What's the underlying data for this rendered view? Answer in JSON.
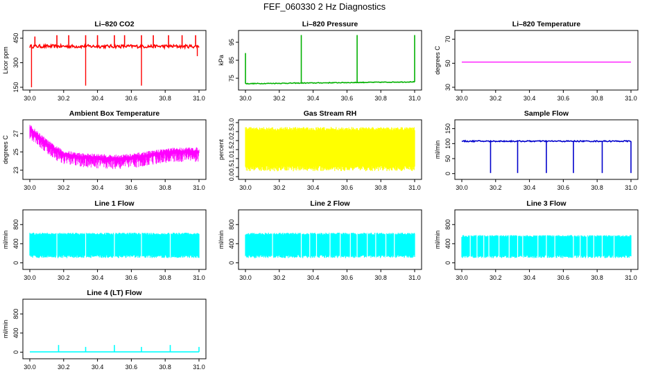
{
  "page": {
    "title": "FEF_060330  2 Hz Diagnostics"
  },
  "chart_data": [
    {
      "id": "co2",
      "type": "line",
      "title": "Li–820 CO2",
      "ylabel": "Licor ppm",
      "xlim": [
        30.0,
        31.0
      ],
      "xticks": [
        "30.0",
        "30.2",
        "30.4",
        "30.6",
        "30.8",
        "31.0"
      ],
      "ylim": [
        150,
        480
      ],
      "yticks": [
        150,
        300,
        450
      ],
      "ytick_labels": [
        "150",
        "300",
        "450"
      ],
      "color": "#ff0000",
      "base": 400,
      "noise": 10,
      "spikes_up": [
        [
          30.03,
          460
        ],
        [
          30.16,
          468
        ],
        [
          30.23,
          468
        ],
        [
          30.33,
          468
        ],
        [
          30.4,
          468
        ],
        [
          30.5,
          468
        ],
        [
          30.56,
          468
        ],
        [
          30.66,
          468
        ],
        [
          30.73,
          468
        ],
        [
          30.82,
          468
        ],
        [
          30.9,
          468
        ],
        [
          30.98,
          468
        ]
      ],
      "spikes_down": [
        [
          30.01,
          150
        ],
        [
          30.33,
          160
        ],
        [
          30.66,
          160
        ],
        [
          30.99,
          340
        ]
      ]
    },
    {
      "id": "pressure",
      "type": "line",
      "title": "Li–820 Pressure",
      "ylabel": "kPa",
      "xlim": [
        30.0,
        31.0
      ],
      "xticks": [
        "30.0",
        "30.2",
        "30.4",
        "30.6",
        "30.8",
        "31.0"
      ],
      "ylim": [
        70,
        100
      ],
      "yticks": [
        75,
        85,
        95
      ],
      "ytick_labels": [
        "75",
        "85",
        "95"
      ],
      "color": "#00b000",
      "base_start": 72.0,
      "base_end": 73.0,
      "noise": 0.2,
      "spikes_up": [
        [
          30.0,
          89
        ],
        [
          30.33,
          99
        ],
        [
          30.66,
          99
        ],
        [
          31.0,
          99
        ]
      ],
      "spikes_down": []
    },
    {
      "id": "temperature",
      "type": "line",
      "title": "Li–820 Temperature",
      "ylabel": "degrees C",
      "xlim": [
        30.0,
        31.0
      ],
      "xticks": [
        "30.0",
        "30.2",
        "30.4",
        "30.6",
        "30.8",
        "31.0"
      ],
      "ylim": [
        30,
        75
      ],
      "yticks": [
        30,
        50,
        70
      ],
      "ytick_labels": [
        "30",
        "50",
        "70"
      ],
      "color": "#ff00ff",
      "constant": 51
    },
    {
      "id": "ambient",
      "type": "line",
      "title": "Ambient Box Temperature",
      "ylabel": "degrees C",
      "xlim": [
        30.0,
        31.0
      ],
      "xticks": [
        "30.0",
        "30.2",
        "30.4",
        "30.6",
        "30.8",
        "31.0"
      ],
      "ylim": [
        22.3,
        28.2
      ],
      "yticks": [
        23,
        25,
        27
      ],
      "ytick_labels": [
        "23",
        "25",
        "27"
      ],
      "color": "#ff00ff",
      "upper_curve": [
        [
          30.0,
          27.8
        ],
        [
          30.05,
          27.0
        ],
        [
          30.1,
          26.2
        ],
        [
          30.15,
          25.5
        ],
        [
          30.2,
          25.0
        ],
        [
          30.3,
          24.7
        ],
        [
          30.4,
          24.6
        ],
        [
          30.5,
          24.5
        ],
        [
          30.6,
          24.6
        ],
        [
          30.7,
          24.9
        ],
        [
          30.8,
          25.2
        ],
        [
          30.9,
          25.3
        ],
        [
          31.0,
          25.3
        ]
      ],
      "band_width": 1.4
    },
    {
      "id": "rh",
      "type": "area",
      "title": "Gas Stream RH",
      "ylabel": "percent",
      "xlim": [
        30.0,
        31.0
      ],
      "xticks": [
        "30.0",
        "30.2",
        "30.4",
        "30.6",
        "30.8",
        "31.0"
      ],
      "ylim": [
        0.0,
        3.0
      ],
      "yticks": [
        0.0,
        0.5,
        1.0,
        1.5,
        2.0,
        2.5,
        3.0
      ],
      "ytick_labels": [
        "0.0",
        "0.5",
        "1.0",
        "1.5",
        "2.0",
        "2.5",
        "3.0"
      ],
      "color": "#ffff00",
      "upper": 2.75,
      "lower": 0.3
    },
    {
      "id": "sample_flow",
      "type": "line",
      "title": "Sample Flow",
      "ylabel": "ml/min",
      "xlim": [
        30.0,
        31.0
      ],
      "xticks": [
        "30.0",
        "30.2",
        "30.4",
        "30.6",
        "30.8",
        "31.0"
      ],
      "ylim": [
        -10,
        170
      ],
      "yticks": [
        0,
        50,
        100,
        150
      ],
      "ytick_labels": [
        "0",
        "50",
        "100",
        "150"
      ],
      "color": "#0000cc",
      "base": 108,
      "noise": 2,
      "dips": [
        30.17,
        30.33,
        30.5,
        30.66,
        30.83,
        31.0
      ],
      "dip_value": 2
    },
    {
      "id": "line1",
      "type": "area",
      "title": "Line 1 Flow",
      "ylabel": "ml/min",
      "xlim": [
        30.0,
        31.0
      ],
      "xticks": [
        "30.0",
        "30.2",
        "30.4",
        "30.6",
        "30.8",
        "31.0"
      ],
      "ylim": [
        -80,
        1050
      ],
      "yticks": [
        0,
        400,
        800
      ],
      "ytick_labels": [
        "0",
        "400",
        "800"
      ],
      "color": "#00ffff",
      "upper": 630,
      "lower": 100,
      "gaps": [
        30.16,
        30.33,
        30.5,
        30.66,
        30.83
      ]
    },
    {
      "id": "line2",
      "type": "area",
      "title": "Line 2 Flow",
      "ylabel": "ml/min",
      "xlim": [
        30.0,
        31.0
      ],
      "xticks": [
        "30.0",
        "30.2",
        "30.4",
        "30.6",
        "30.8",
        "31.0"
      ],
      "ylim": [
        -80,
        1050
      ],
      "yticks": [
        0,
        400,
        800
      ],
      "ytick_labels": [
        "0",
        "400",
        "800"
      ],
      "color": "#00ffff",
      "upper": 630,
      "lower": 100,
      "gaps": [
        30.16,
        30.33,
        30.38,
        30.42,
        30.5,
        30.56,
        30.62,
        30.66,
        30.72,
        30.77,
        30.83,
        30.88
      ]
    },
    {
      "id": "line3",
      "type": "area",
      "title": "Line 3 Flow",
      "ylabel": "ml/min",
      "xlim": [
        30.0,
        31.0
      ],
      "xticks": [
        "30.0",
        "30.2",
        "30.4",
        "30.6",
        "30.8",
        "31.0"
      ],
      "ylim": [
        -80,
        1050
      ],
      "yticks": [
        0,
        400,
        800
      ],
      "ytick_labels": [
        "0",
        "400",
        "800"
      ],
      "color": "#00ffff",
      "upper": 580,
      "lower": 100,
      "gaps": [
        30.05,
        30.09,
        30.13,
        30.16,
        30.22,
        30.28,
        30.33,
        30.36,
        30.45,
        30.5,
        30.55,
        30.66,
        30.7,
        30.74,
        30.78,
        30.83,
        30.9
      ]
    },
    {
      "id": "line4",
      "type": "line",
      "title": "Line 4 (LT) Flow",
      "ylabel": "ml/min",
      "xlim": [
        30.0,
        31.0
      ],
      "xticks": [
        "30.0",
        "30.2",
        "30.4",
        "30.6",
        "30.8",
        "31.0"
      ],
      "ylim": [
        -80,
        1050
      ],
      "yticks": [
        0,
        400,
        800
      ],
      "ytick_labels": [
        "0",
        "400",
        "800"
      ],
      "color": "#00ffff",
      "base": 5,
      "spikes_up": [
        [
          30.17,
          150
        ],
        [
          30.33,
          110
        ],
        [
          30.5,
          150
        ],
        [
          30.66,
          110
        ],
        [
          30.83,
          150
        ],
        [
          31.0,
          110
        ]
      ]
    }
  ]
}
